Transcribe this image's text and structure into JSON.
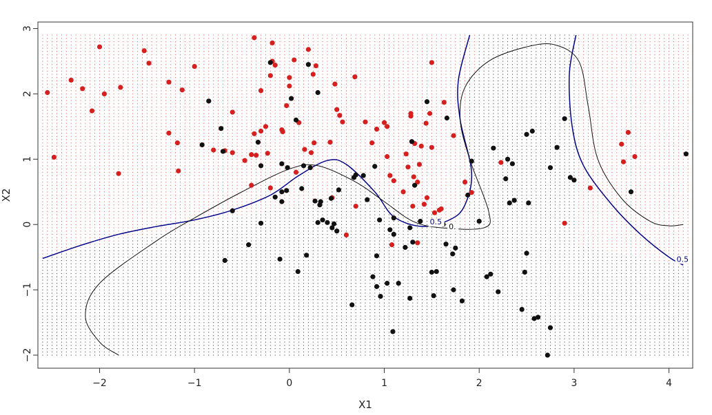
{
  "chart_data": {
    "type": "scatter",
    "title": "",
    "xlabel": "X1",
    "ylabel": "X2",
    "xlim": [
      -2.65,
      4.25
    ],
    "ylim": [
      -2.2,
      3.1
    ],
    "xticks": [
      -2,
      -1,
      0,
      1,
      2,
      3,
      4
    ],
    "yticks": [
      -2,
      -1,
      0,
      1,
      2,
      3
    ],
    "xtick_labels": [
      "−2",
      "−1",
      "0",
      "1",
      "2",
      "3",
      "4"
    ],
    "ytick_labels": [
      "−2",
      "−1",
      "0",
      "1",
      "2",
      "3"
    ],
    "grid_range": {
      "x": [
        -2.6,
        4.2
      ],
      "y": [
        -2.0,
        2.9
      ],
      "step_x": 0.05,
      "step_y": 0.05
    },
    "colors": {
      "red": "#d62020",
      "black": "#111111",
      "blue": "#00008b",
      "grid_red": "#e06060",
      "grid_black": "#444444"
    },
    "decision_curve": [
      [
        -2.6,
        -0.52
      ],
      [
        -2.2,
        -0.32
      ],
      [
        -1.8,
        -0.15
      ],
      [
        -1.4,
        -0.03
      ],
      [
        -1.0,
        0.07
      ],
      [
        -0.6,
        0.22
      ],
      [
        -0.2,
        0.45
      ],
      [
        0.1,
        0.75
      ],
      [
        0.4,
        0.98
      ],
      [
        0.6,
        0.92
      ],
      [
        0.9,
        0.5
      ],
      [
        1.1,
        0.12
      ],
      [
        1.4,
        -0.03
      ],
      [
        1.7,
        0.08
      ],
      [
        1.85,
        0.3
      ],
      [
        1.92,
        0.8
      ],
      [
        1.8,
        1.6
      ],
      [
        1.78,
        2.2
      ],
      [
        1.9,
        2.9
      ]
    ],
    "decision_curve_right": [
      [
        3.02,
        2.9
      ],
      [
        2.95,
        2.3
      ],
      [
        2.98,
        1.5
      ],
      [
        3.1,
        0.9
      ],
      [
        3.4,
        0.3
      ],
      [
        3.7,
        -0.15
      ],
      [
        4.0,
        -0.5
      ],
      [
        4.15,
        -0.62
      ]
    ],
    "boundary_curve": [
      [
        -1.8,
        -2.0
      ],
      [
        -2.0,
        -1.8
      ],
      [
        -2.15,
        -1.4
      ],
      [
        -2.0,
        -0.9
      ],
      [
        -1.4,
        -0.25
      ],
      [
        -1.0,
        0.1
      ],
      [
        -0.5,
        0.5
      ],
      [
        0.0,
        0.85
      ],
      [
        0.3,
        0.9
      ],
      [
        0.7,
        0.65
      ],
      [
        1.0,
        0.35
      ],
      [
        1.3,
        0.05
      ],
      [
        1.6,
        -0.05
      ],
      [
        2.05,
        -0.05
      ],
      [
        2.1,
        0.2
      ],
      [
        1.9,
        1.0
      ],
      [
        1.8,
        1.6
      ],
      [
        1.85,
        2.1
      ],
      [
        2.1,
        2.5
      ],
      [
        2.5,
        2.72
      ],
      [
        2.8,
        2.75
      ],
      [
        3.05,
        2.5
      ],
      [
        3.15,
        1.8
      ],
      [
        3.25,
        1.0
      ],
      [
        3.5,
        0.4
      ],
      [
        3.8,
        0.05
      ],
      [
        4.0,
        -0.02
      ],
      [
        4.15,
        0.0
      ]
    ],
    "contour_labels": [
      {
        "text": "0.5",
        "x": 1.48,
        "y": 0.0,
        "color": "#00008b"
      },
      {
        "text": "0.",
        "x": 1.68,
        "y": -0.07,
        "color": "#111111"
      },
      {
        "text": "0.5",
        "x": 4.08,
        "y": -0.57,
        "color": "#00008b"
      }
    ],
    "red_points": [
      [
        -2.55,
        2.02
      ],
      [
        -2.48,
        1.03
      ],
      [
        -2.3,
        2.21
      ],
      [
        -2.18,
        2.08
      ],
      [
        -2.08,
        1.74
      ],
      [
        -2.0,
        2.72
      ],
      [
        -1.95,
        2.0
      ],
      [
        -1.8,
        0.78
      ],
      [
        -1.78,
        2.1
      ],
      [
        -1.53,
        2.66
      ],
      [
        -1.48,
        2.47
      ],
      [
        -1.27,
        2.18
      ],
      [
        -1.27,
        1.4
      ],
      [
        -1.18,
        1.25
      ],
      [
        -1.17,
        0.82
      ],
      [
        -1.13,
        2.06
      ],
      [
        -1.0,
        2.42
      ],
      [
        -0.8,
        1.14
      ],
      [
        -0.68,
        1.13
      ],
      [
        -0.6,
        1.72
      ],
      [
        -0.6,
        1.1
      ],
      [
        -0.47,
        0.98
      ],
      [
        -0.4,
        1.07
      ],
      [
        -0.4,
        0.6
      ],
      [
        -0.37,
        1.39
      ],
      [
        -0.37,
        2.86
      ],
      [
        -0.35,
        1.06
      ],
      [
        -0.3,
        1.43
      ],
      [
        -0.3,
        2.05
      ],
      [
        -0.25,
        1.5
      ],
      [
        -0.23,
        1.09
      ],
      [
        -0.2,
        0.56
      ],
      [
        -0.2,
        2.28
      ],
      [
        -0.18,
        2.5
      ],
      [
        -0.18,
        2.78
      ],
      [
        -0.15,
        2.44
      ],
      [
        -0.08,
        1.45
      ],
      [
        -0.07,
        1.42
      ],
      [
        -0.03,
        1.82
      ],
      [
        0.0,
        2.12
      ],
      [
        0.0,
        2.25
      ],
      [
        0.05,
        2.52
      ],
      [
        0.07,
        0.8
      ],
      [
        0.1,
        1.56
      ],
      [
        0.16,
        1.15
      ],
      [
        0.2,
        2.68
      ],
      [
        0.23,
        1.1
      ],
      [
        0.25,
        2.3
      ],
      [
        0.26,
        1.25
      ],
      [
        0.28,
        2.43
      ],
      [
        0.43,
        1.26
      ],
      [
        0.45,
        0.41
      ],
      [
        0.48,
        2.15
      ],
      [
        0.5,
        1.76
      ],
      [
        0.53,
        1.67
      ],
      [
        0.56,
        1.57
      ],
      [
        0.6,
        -0.16
      ],
      [
        0.69,
        2.26
      ],
      [
        0.7,
        0.28
      ],
      [
        0.8,
        1.57
      ],
      [
        0.87,
        1.25
      ],
      [
        0.92,
        1.46
      ],
      [
        1.0,
        1.56
      ],
      [
        1.03,
        1.5
      ],
      [
        1.03,
        1.04
      ],
      [
        1.06,
        0.75
      ],
      [
        1.08,
        -0.31
      ],
      [
        1.1,
        0.67
      ],
      [
        1.2,
        0.5
      ],
      [
        1.23,
        1.08
      ],
      [
        1.25,
        0.88
      ],
      [
        1.28,
        1.66
      ],
      [
        1.28,
        1.7
      ],
      [
        1.3,
        0.28
      ],
      [
        1.31,
        0.73
      ],
      [
        1.32,
        1.24
      ],
      [
        1.35,
        0.65
      ],
      [
        1.35,
        -0.28
      ],
      [
        1.37,
        0.92
      ],
      [
        1.39,
        1.2
      ],
      [
        1.42,
        0.31
      ],
      [
        1.44,
        1.55
      ],
      [
        1.45,
        0.41
      ],
      [
        1.48,
        1.7
      ],
      [
        1.5,
        2.48
      ],
      [
        1.5,
        1.18
      ],
      [
        1.53,
        0.18
      ],
      [
        1.58,
        0.22
      ],
      [
        1.6,
        0.24
      ],
      [
        1.63,
        1.87
      ],
      [
        1.73,
        1.36
      ],
      [
        1.85,
        0.65
      ],
      [
        1.92,
        0.49
      ],
      [
        2.23,
        0.95
      ],
      [
        2.9,
        0.02
      ],
      [
        3.17,
        0.56
      ],
      [
        3.5,
        1.23
      ],
      [
        3.52,
        0.96
      ],
      [
        3.57,
        1.41
      ],
      [
        3.64,
        1.04
      ]
    ],
    "black_points": [
      [
        -0.92,
        1.22
      ],
      [
        -0.85,
        1.89
      ],
      [
        -0.72,
        1.47
      ],
      [
        -0.7,
        1.12
      ],
      [
        -0.68,
        -0.55
      ],
      [
        -0.6,
        0.21
      ],
      [
        -0.43,
        -0.31
      ],
      [
        -0.33,
        1.26
      ],
      [
        -0.3,
        0.02
      ],
      [
        -0.3,
        0.9
      ],
      [
        -0.2,
        2.48
      ],
      [
        -0.15,
        0.42
      ],
      [
        -0.1,
        -0.53
      ],
      [
        -0.08,
        0.5
      ],
      [
        -0.08,
        0.35
      ],
      [
        -0.08,
        0.93
      ],
      [
        -0.03,
        0.52
      ],
      [
        -0.02,
        0.87
      ],
      [
        0.02,
        1.93
      ],
      [
        0.07,
        1.6
      ],
      [
        0.09,
        -0.72
      ],
      [
        0.13,
        0.55
      ],
      [
        0.15,
        0.9
      ],
      [
        0.18,
        -0.47
      ],
      [
        0.2,
        2.45
      ],
      [
        0.22,
        0.87
      ],
      [
        0.27,
        0.36
      ],
      [
        0.3,
        2.02
      ],
      [
        0.3,
        0.03
      ],
      [
        0.32,
        0.3
      ],
      [
        0.33,
        0.35
      ],
      [
        0.35,
        0.07
      ],
      [
        0.4,
        0.03
      ],
      [
        0.44,
        0.4
      ],
      [
        0.45,
        -0.05
      ],
      [
        0.47,
        0.01
      ],
      [
        0.5,
        -0.1
      ],
      [
        0.52,
        0.53
      ],
      [
        0.66,
        -1.23
      ],
      [
        0.68,
        0.72
      ],
      [
        0.7,
        0.76
      ],
      [
        0.78,
        0.75
      ],
      [
        0.82,
        0.38
      ],
      [
        0.88,
        -0.8
      ],
      [
        0.9,
        0.89
      ],
      [
        0.92,
        -0.48
      ],
      [
        0.92,
        -0.95
      ],
      [
        0.95,
        0.07
      ],
      [
        0.96,
        -1.1
      ],
      [
        1.03,
        -0.9
      ],
      [
        1.06,
        -0.08
      ],
      [
        1.09,
        -1.64
      ],
      [
        1.1,
        0.1
      ],
      [
        1.1,
        -0.15
      ],
      [
        1.15,
        -0.9
      ],
      [
        1.22,
        -0.35
      ],
      [
        1.27,
        -0.05
      ],
      [
        1.27,
        -1.13
      ],
      [
        1.29,
        1.27
      ],
      [
        1.3,
        -0.27
      ],
      [
        1.32,
        0.6
      ],
      [
        1.38,
        0.05
      ],
      [
        1.45,
        1.88
      ],
      [
        1.5,
        -0.73
      ],
      [
        1.52,
        -1.09
      ],
      [
        1.55,
        -0.72
      ],
      [
        1.62,
        0.0
      ],
      [
        1.65,
        -0.3
      ],
      [
        1.66,
        1.63
      ],
      [
        1.72,
        -0.45
      ],
      [
        1.73,
        -1.0
      ],
      [
        1.75,
        -0.36
      ],
      [
        1.82,
        -1.17
      ],
      [
        1.88,
        0.45
      ],
      [
        1.92,
        0.97
      ],
      [
        2.0,
        0.05
      ],
      [
        2.08,
        -0.8
      ],
      [
        2.12,
        -0.76
      ],
      [
        2.15,
        1.17
      ],
      [
        2.2,
        -1.03
      ],
      [
        2.28,
        0.7
      ],
      [
        2.3,
        1.0
      ],
      [
        2.32,
        0.33
      ],
      [
        2.35,
        0.93
      ],
      [
        2.37,
        0.37
      ],
      [
        2.45,
        -1.3
      ],
      [
        2.48,
        -0.73
      ],
      [
        2.5,
        -0.44
      ],
      [
        2.5,
        1.38
      ],
      [
        2.52,
        0.33
      ],
      [
        2.56,
        1.43
      ],
      [
        2.58,
        -1.44
      ],
      [
        2.62,
        -1.42
      ],
      [
        2.72,
        -2.0
      ],
      [
        2.75,
        -1.58
      ],
      [
        2.75,
        0.87
      ],
      [
        2.82,
        1.18
      ],
      [
        2.9,
        1.62
      ],
      [
        2.96,
        0.72
      ],
      [
        3.0,
        0.68
      ],
      [
        3.6,
        0.5
      ],
      [
        4.18,
        1.08
      ]
    ]
  }
}
